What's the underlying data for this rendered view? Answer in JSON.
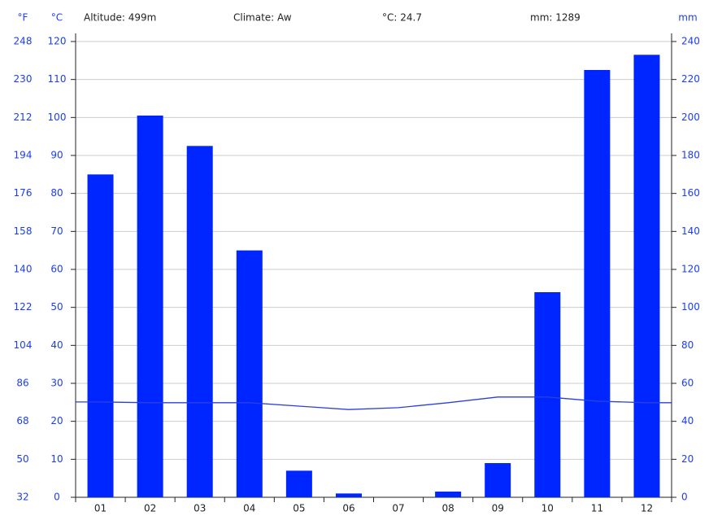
{
  "chart_data": {
    "type": "climate",
    "header": {
      "fahrenheit_unit": "°F",
      "celsius_unit": "°C",
      "altitude": "Altitude: 499m",
      "climate": "Climate: Aw",
      "mean_temp": "°C: 24.7",
      "total_precip": "mm: 1289",
      "mm_unit": "mm"
    },
    "categories": [
      "01",
      "02",
      "03",
      "04",
      "05",
      "06",
      "07",
      "08",
      "09",
      "10",
      "11",
      "12"
    ],
    "series": [
      {
        "name": "Precipitation",
        "type": "bar",
        "axis": "y2",
        "color": "#0026ff",
        "values": [
          170,
          201,
          185,
          130,
          14,
          2,
          0,
          3,
          18,
          108,
          225,
          233
        ]
      },
      {
        "name": "Temperature",
        "type": "line",
        "axis": "y",
        "color": "#2a3fe0",
        "values": [
          25.1,
          24.9,
          24.9,
          24.9,
          24.0,
          23.1,
          23.6,
          24.9,
          26.4,
          26.4,
          25.3,
          24.9
        ]
      }
    ],
    "ylim": [
      0,
      120
    ],
    "yticks": [
      0,
      10,
      20,
      30,
      40,
      50,
      60,
      70,
      80,
      90,
      100,
      110,
      120
    ],
    "y2lim": [
      0,
      240
    ],
    "y2ticks": [
      0,
      20,
      40,
      60,
      80,
      100,
      120,
      140,
      160,
      180,
      200,
      220,
      240
    ],
    "flim": [
      32,
      248
    ],
    "fticks": [
      32,
      50,
      68,
      86,
      104,
      122,
      140,
      158,
      176,
      194,
      212,
      230,
      248
    ],
    "grid": true
  }
}
